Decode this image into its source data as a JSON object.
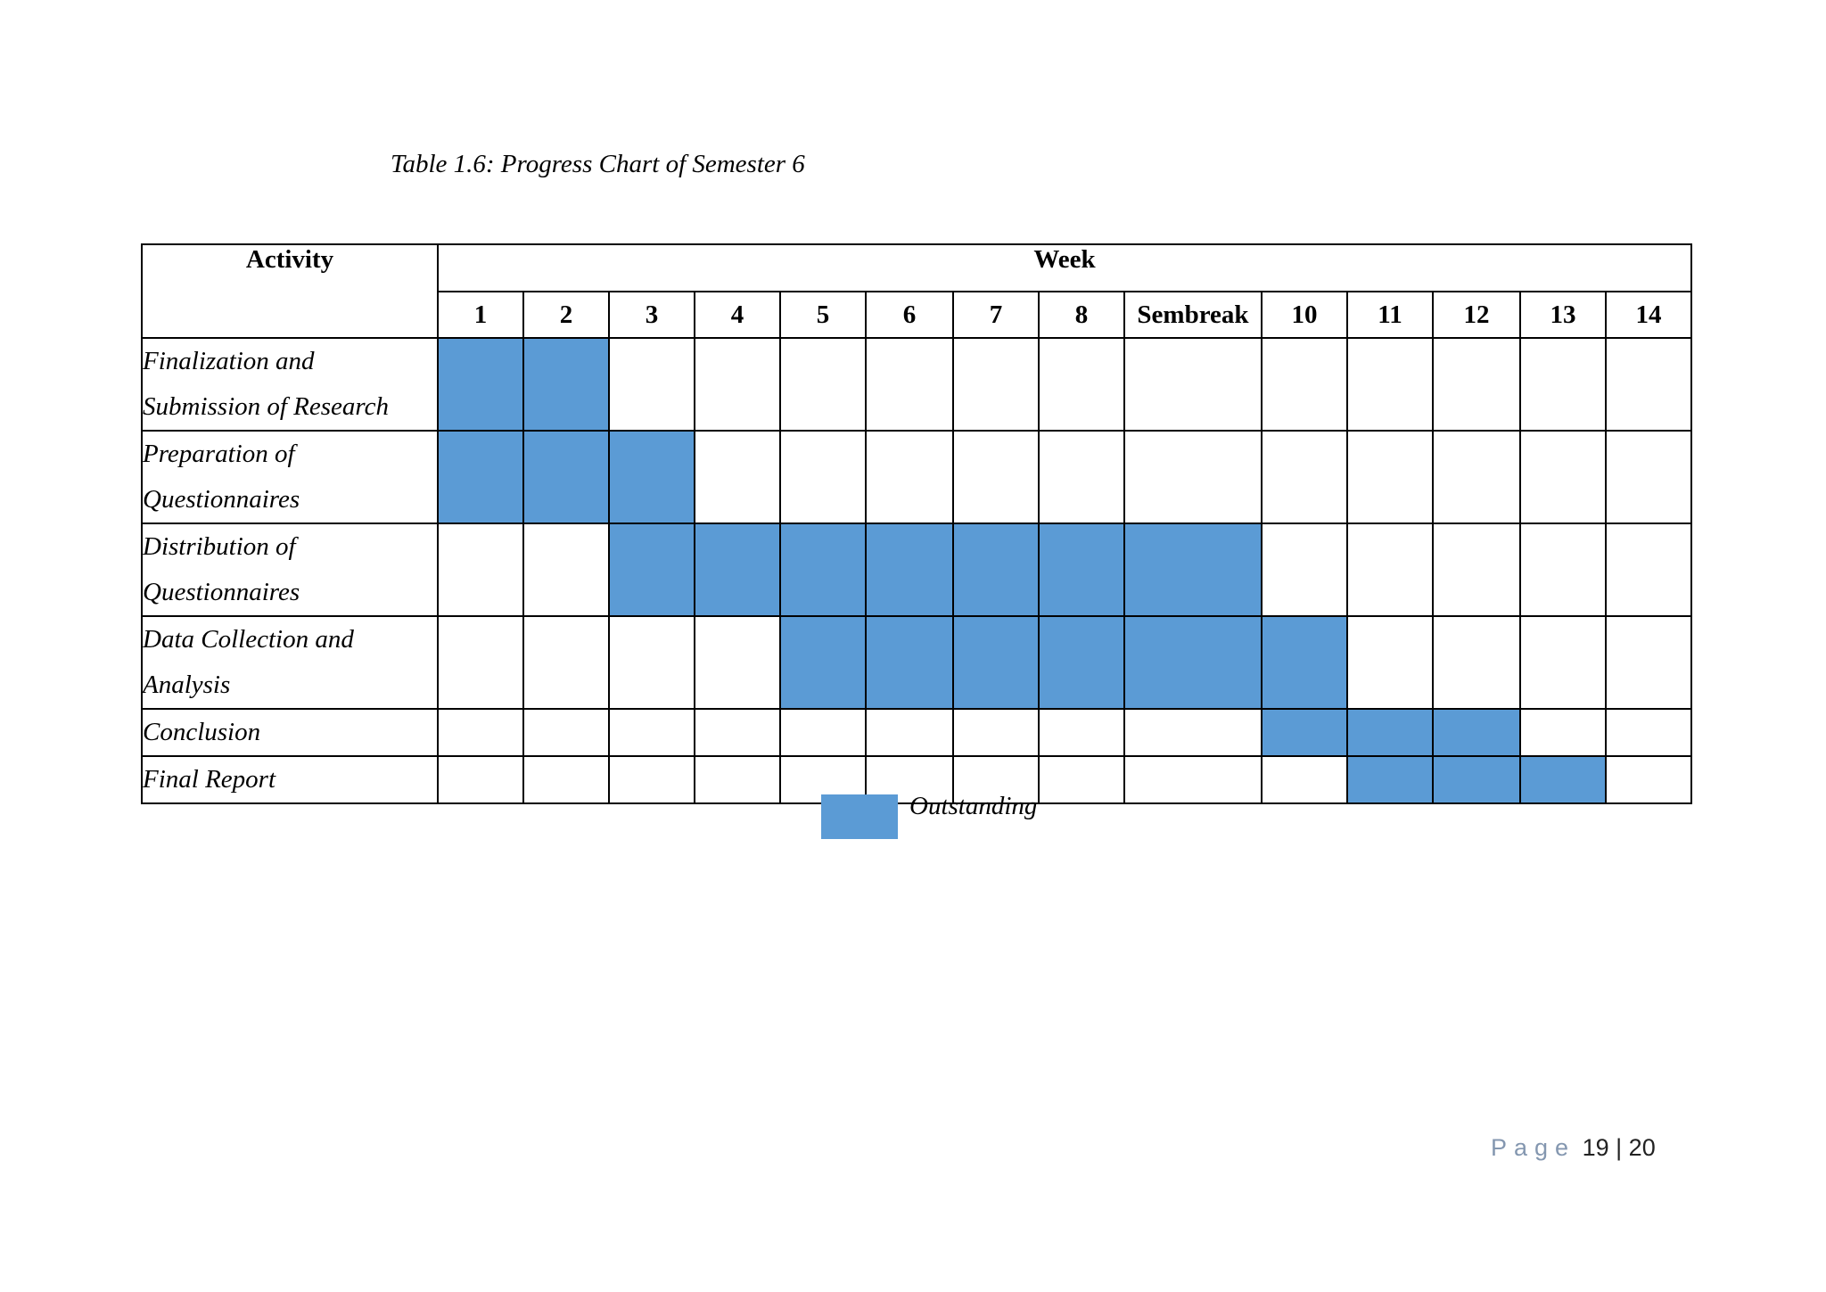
{
  "caption": "Table 1.6: Progress Chart of Semester 6",
  "colors": {
    "outstanding_fill": "#5b9bd5",
    "grid": "#000000",
    "page_label": "#8497b0"
  },
  "table": {
    "activity_header": "Activity",
    "week_header": "Week",
    "weeks": [
      "1",
      "2",
      "3",
      "4",
      "5",
      "6",
      "7",
      "8",
      "Sembreak",
      "10",
      "11",
      "12",
      "13",
      "14"
    ],
    "rows": [
      {
        "lines": [
          "Finalization and",
          "Submission of Research"
        ],
        "filled": [
          1,
          1,
          0,
          0,
          0,
          0,
          0,
          0,
          0,
          0,
          0,
          0,
          0,
          0
        ]
      },
      {
        "lines": [
          "Preparation of",
          "Questionnaires"
        ],
        "filled": [
          1,
          1,
          1,
          0,
          0,
          0,
          0,
          0,
          0,
          0,
          0,
          0,
          0,
          0
        ]
      },
      {
        "lines": [
          "Distribution of",
          "Questionnaires"
        ],
        "filled": [
          0,
          0,
          1,
          1,
          1,
          1,
          1,
          1,
          1,
          0,
          0,
          0,
          0,
          0
        ]
      },
      {
        "lines": [
          "Data Collection and",
          "Analysis"
        ],
        "filled": [
          0,
          0,
          0,
          0,
          1,
          1,
          1,
          1,
          1,
          1,
          0,
          0,
          0,
          0
        ]
      },
      {
        "lines": [
          "Conclusion"
        ],
        "filled": [
          0,
          0,
          0,
          0,
          0,
          0,
          0,
          0,
          0,
          1,
          1,
          1,
          0,
          0
        ]
      },
      {
        "lines": [
          "Final Report"
        ],
        "filled": [
          0,
          0,
          0,
          0,
          0,
          0,
          0,
          0,
          0,
          0,
          1,
          1,
          1,
          0
        ]
      }
    ]
  },
  "legend": {
    "label": "Outstanding"
  },
  "footer": {
    "page_word": "Page",
    "current": "19",
    "separator": "|",
    "total": "20"
  }
}
